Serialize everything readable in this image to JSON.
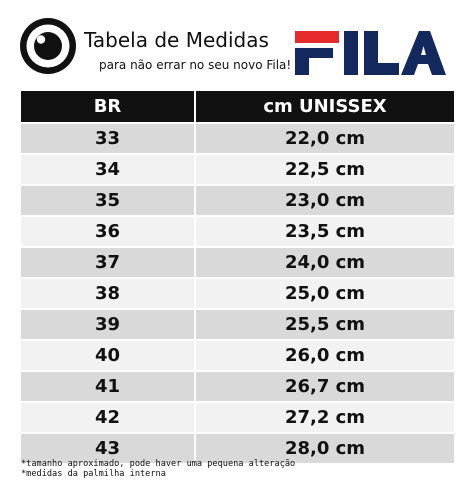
{
  "header": {
    "title": "Tabela de Medidas",
    "subtitle": "para não errar no seu novo Fila!",
    "icon": "eye-icon",
    "brand": "FILA"
  },
  "colors": {
    "brand_red": "#e52b2b",
    "brand_navy": "#13295e",
    "header_bg": "#111111",
    "row_dark": "#d9d9d9",
    "row_light": "#f2f2f2"
  },
  "table": {
    "headers": [
      "BR",
      "cm UNISSEX"
    ],
    "rows": [
      [
        "33",
        "22,0 cm"
      ],
      [
        "34",
        "22,5 cm"
      ],
      [
        "35",
        "23,0 cm"
      ],
      [
        "36",
        "23,5 cm"
      ],
      [
        "37",
        "24,0 cm"
      ],
      [
        "38",
        "25,0 cm"
      ],
      [
        "39",
        "25,5 cm"
      ],
      [
        "40",
        "26,0 cm"
      ],
      [
        "41",
        "26,7 cm"
      ],
      [
        "42",
        "27,2 cm"
      ],
      [
        "43",
        "28,0 cm"
      ]
    ]
  },
  "footnotes": [
    "*tamanho aproximado, pode haver uma pequena alteração",
    "*medidas da palmilha interna"
  ]
}
